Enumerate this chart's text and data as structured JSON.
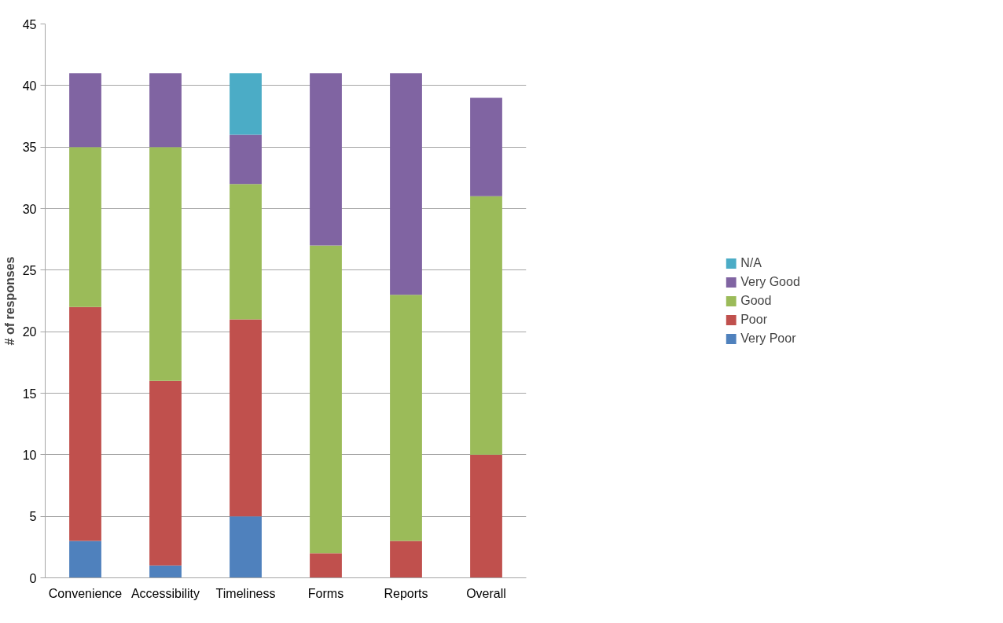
{
  "chart_data": {
    "type": "bar",
    "stacked": true,
    "ylabel": "# of responses",
    "categories": [
      "Convenience",
      "Accessibility",
      "Timeliness",
      "Forms",
      "Reports",
      "Overall"
    ],
    "series": [
      {
        "name": "Very Poor",
        "color": "#4f81bd",
        "values": [
          3,
          1,
          5,
          0,
          0,
          0
        ]
      },
      {
        "name": "Poor",
        "color": "#c0504d",
        "values": [
          19,
          15,
          16,
          2,
          3,
          10
        ]
      },
      {
        "name": "Good",
        "color": "#9bbb59",
        "values": [
          13,
          19,
          11,
          25,
          20,
          21
        ]
      },
      {
        "name": "Very Good",
        "color": "#8064a2",
        "values": [
          6,
          6,
          4,
          14,
          18,
          8
        ]
      },
      {
        "name": "N/A",
        "color": "#4bacc6",
        "values": [
          0,
          0,
          5,
          0,
          0,
          0
        ]
      }
    ],
    "ylim": [
      0,
      45
    ],
    "yticks": [
      0,
      5,
      10,
      15,
      20,
      25,
      30,
      35,
      40,
      45
    ],
    "grid": "y",
    "legend": "right"
  }
}
